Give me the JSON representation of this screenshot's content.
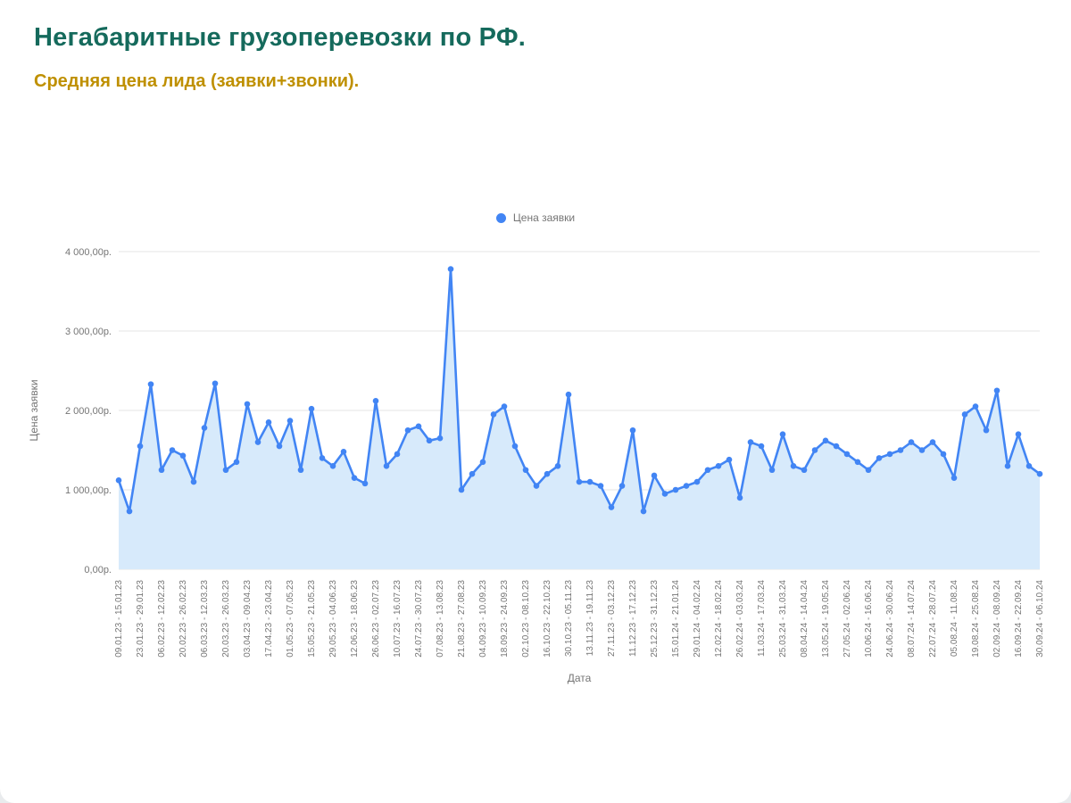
{
  "page": {
    "title": "Негабаритные грузоперевозки по РФ.",
    "subtitle": "Средняя цена лида (заявки+звонки)."
  },
  "chart_data": {
    "type": "area",
    "title": "Негабаритные грузоперевозки по РФ.",
    "subtitle": "Средняя цена лида (заявки+звонки).",
    "xlabel": "Дата",
    "ylabel": "Цена заявки",
    "ylim": [
      0,
      4000
    ],
    "grid": true,
    "legend_position": "top-center",
    "y_ticks": [
      {
        "value": 0,
        "label": "0,00р."
      },
      {
        "value": 1000,
        "label": "1 000,00р."
      },
      {
        "value": 2000,
        "label": "2 000,00р."
      },
      {
        "value": 3000,
        "label": "3 000,00р."
      },
      {
        "value": 4000,
        "label": "4 000,00р."
      }
    ],
    "x_label_every_n_points": 2,
    "x_tick_labels": [
      "09.01.23 - 15.01.23",
      "23.01.23 - 29.01.23",
      "06.02.23 - 12.02.23",
      "20.02.23 - 26.02.23",
      "06.03.23 - 12.03.23",
      "20.03.23 - 26.03.23",
      "03.04.23 - 09.04.23",
      "17.04.23 - 23.04.23",
      "01.05.23 - 07.05.23",
      "15.05.23 - 21.05.23",
      "29.05.23 - 04.06.23",
      "12.06.23 - 18.06.23",
      "26.06.23 - 02.07.23",
      "10.07.23 - 16.07.23",
      "24.07.23 - 30.07.23",
      "07.08.23 - 13.08.23",
      "21.08.23 - 27.08.23",
      "04.09.23 - 10.09.23",
      "18.09.23 - 24.09.23",
      "02.10.23 - 08.10.23",
      "16.10.23 - 22.10.23",
      "30.10.23 - 05.11.23",
      "13.11.23 - 19.11.23",
      "27.11.23 - 03.12.23",
      "11.12.23 - 17.12.23",
      "25.12.23 - 31.12.23",
      "15.01.24 - 21.01.24",
      "29.01.24 - 04.02.24",
      "12.02.24 - 18.02.24",
      "26.02.24 - 03.03.24",
      "11.03.24 - 17.03.24",
      "25.03.24 - 31.03.24",
      "08.04.24 - 14.04.24",
      "13.05.24 - 19.05.24",
      "27.05.24 - 02.06.24",
      "10.06.24 - 16.06.24",
      "24.06.24 - 30.06.24",
      "08.07.24 - 14.07.24",
      "22.07.24 - 28.07.24",
      "05.08.24 - 11.08.24",
      "19.08.24 - 25.08.24",
      "02.09.24 - 08.09.24",
      "16.09.24 - 22.09.24",
      "30.09.24 - 06.10.24"
    ],
    "series": [
      {
        "name": "Цена заявки",
        "color": "#4285f4",
        "area_fill": "#d7eafb",
        "values": [
          1120,
          730,
          1550,
          2330,
          1250,
          1500,
          1430,
          1100,
          1780,
          2340,
          1250,
          1350,
          2080,
          1600,
          1850,
          1550,
          1870,
          1250,
          2020,
          1400,
          1300,
          1480,
          1150,
          1080,
          2120,
          1300,
          1450,
          1750,
          1800,
          1620,
          1650,
          3780,
          1000,
          1200,
          1350,
          1950,
          2050,
          1550,
          1250,
          1050,
          1200,
          1300,
          2200,
          1100,
          1100,
          1050,
          780,
          1050,
          1750,
          730,
          1180,
          950,
          1000,
          1050,
          1100,
          1250,
          1300,
          1380,
          900,
          1600,
          1550,
          1250,
          1700,
          1300,
          1250,
          1500,
          1620,
          1550,
          1450,
          1350,
          1250,
          1400,
          1450,
          1500,
          1600,
          1500,
          1600,
          1450,
          1150,
          1950,
          2050,
          1750,
          2250,
          1300,
          1700,
          1300,
          1200
        ]
      }
    ],
    "colors": {
      "grid": "#e6e6e6",
      "axis_text": "#757575",
      "title": "#156a5c",
      "subtitle": "#bf9000"
    }
  }
}
